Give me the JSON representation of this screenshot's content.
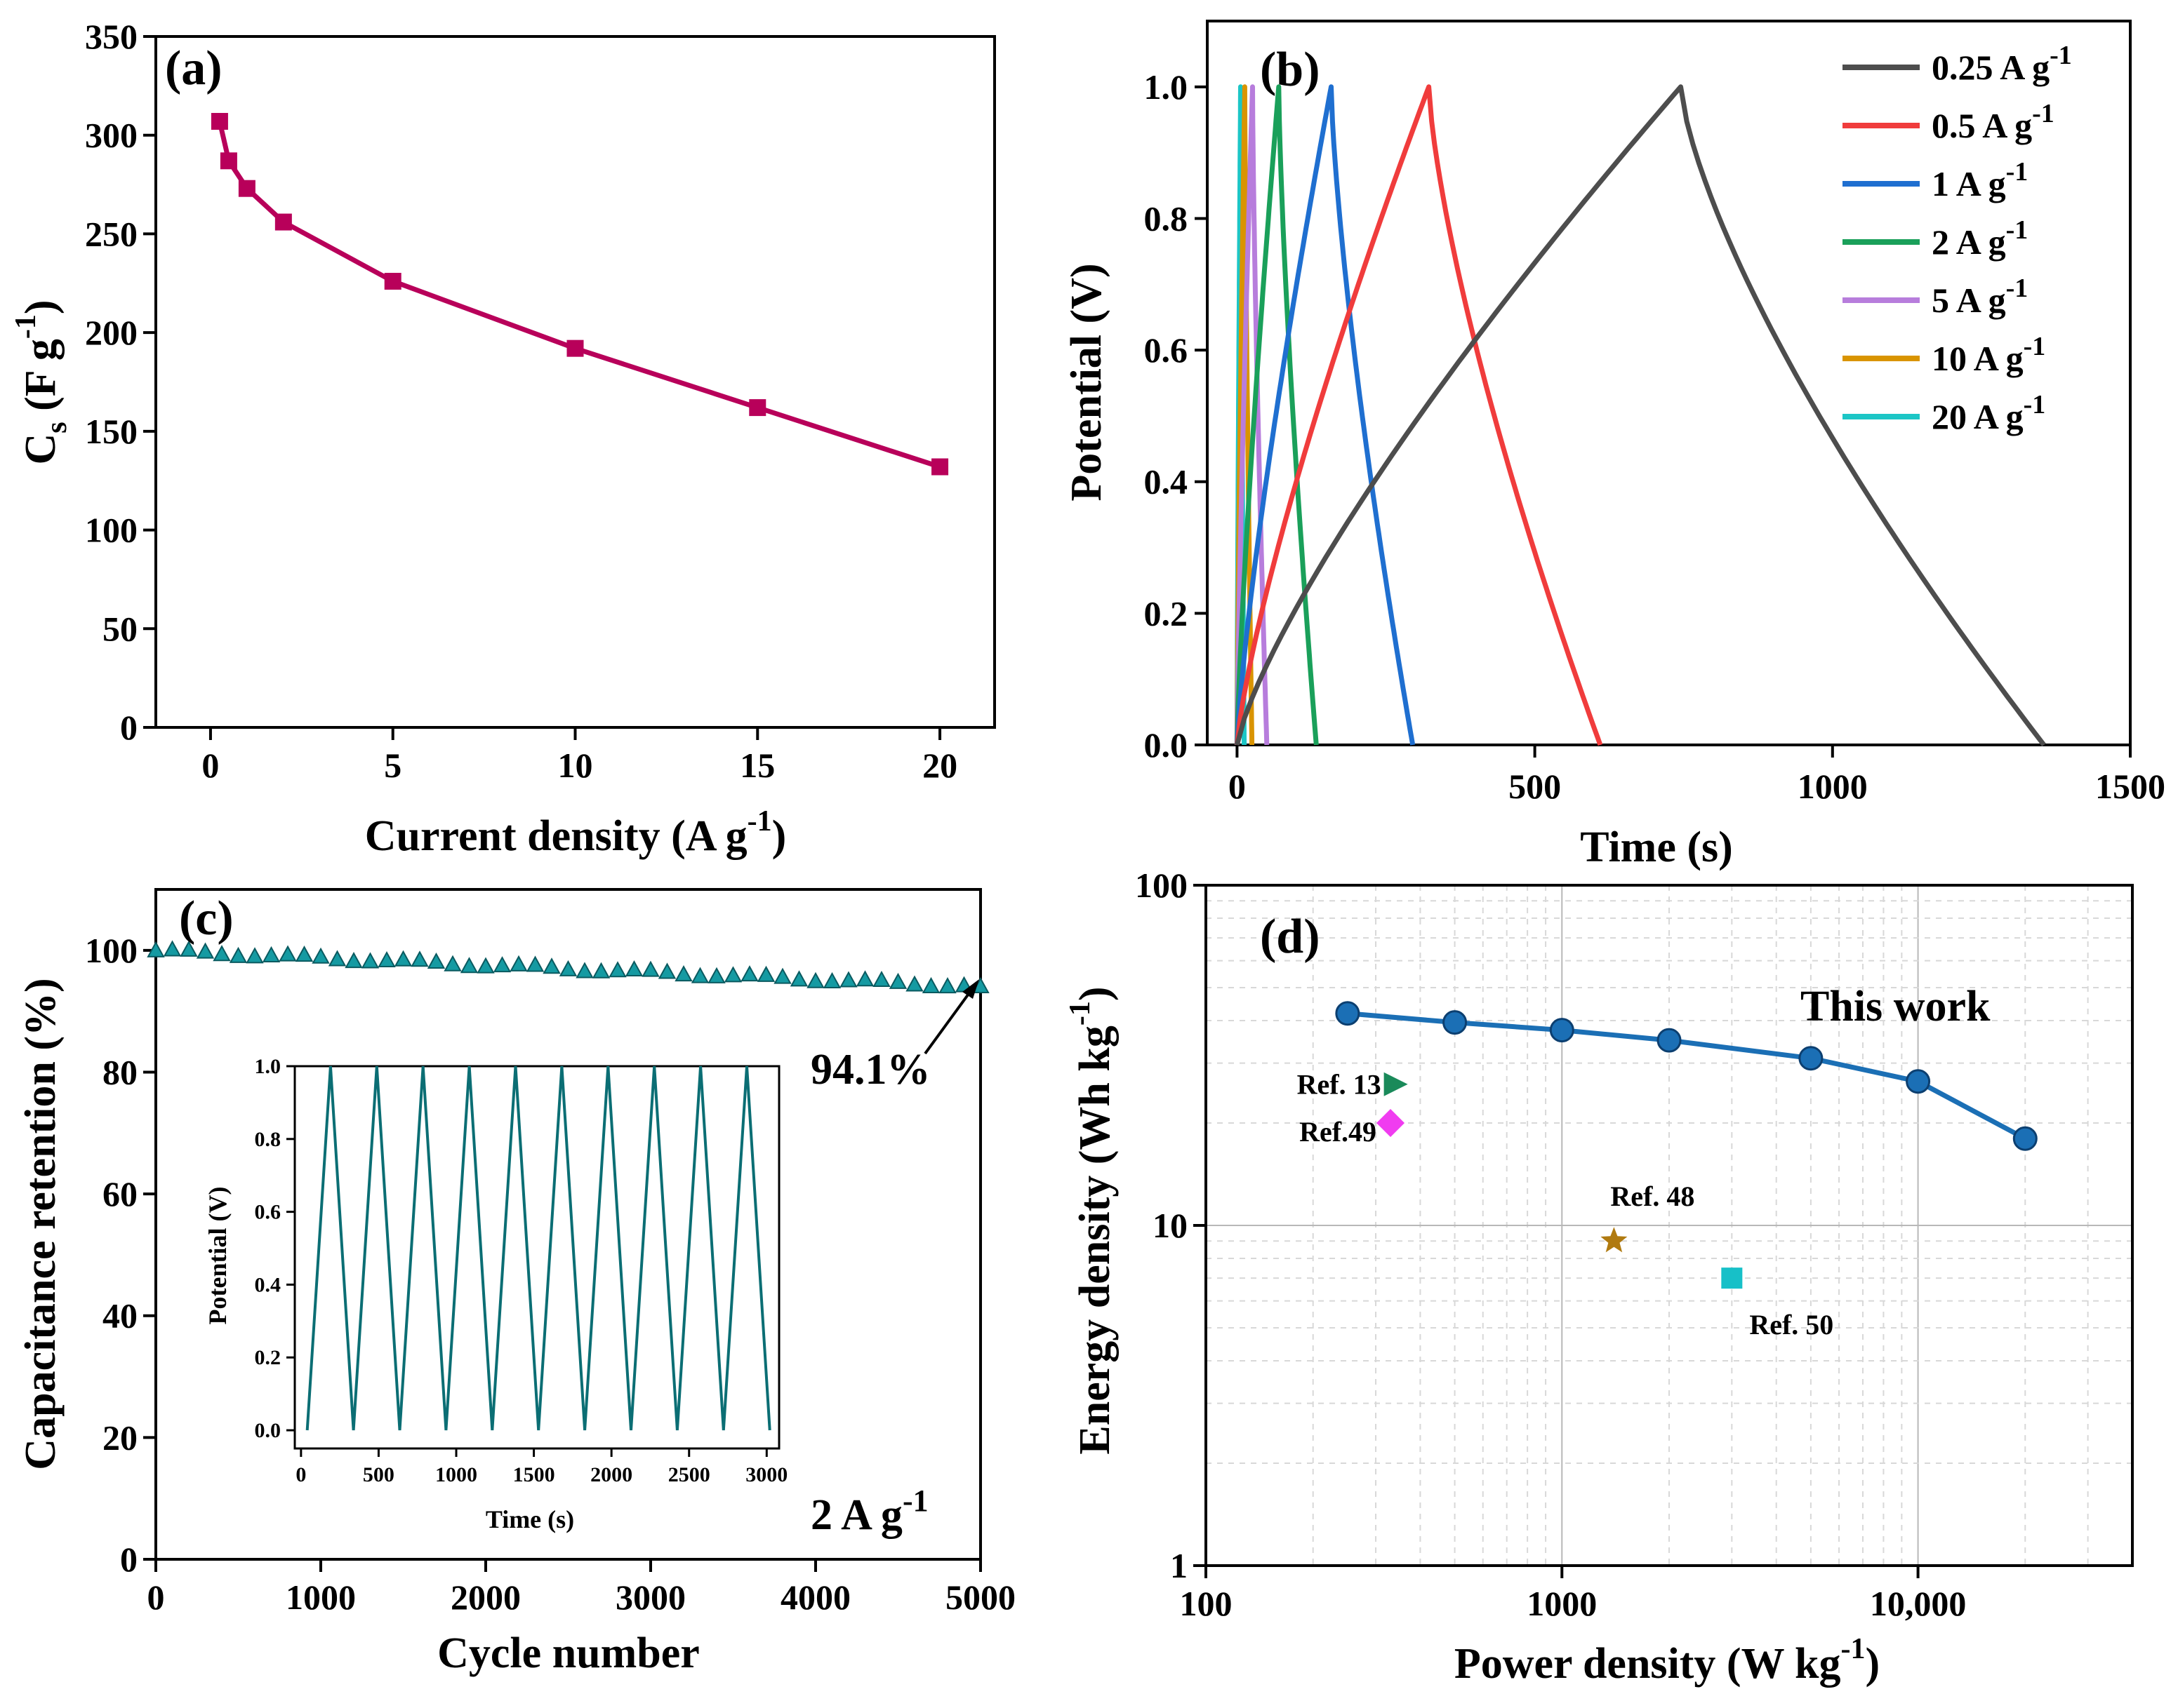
{
  "colors": {
    "a_line": "#b8005a",
    "c_marker": "#159aa2",
    "c_inset": "#0b6e74",
    "d_line": "#1b6fb5"
  },
  "chart_data": [
    {
      "panel": "(a)",
      "type": "line",
      "xlabel": "Current density (A g",
      "xlabel_sup": "-1",
      "xlabel_end": ")",
      "ylabel": "C",
      "ylabel_sub": "s",
      "ylabel_rest": " (F g",
      "ylabel_sup": "-1",
      "ylabel_end": ")",
      "xlim": [
        -1.5,
        21.5
      ],
      "ylim": [
        0,
        350
      ],
      "xticks": [
        0,
        5,
        10,
        15,
        20
      ],
      "yticks": [
        0,
        50,
        100,
        150,
        200,
        250,
        300,
        350
      ],
      "x": [
        0.25,
        0.5,
        1,
        2,
        5,
        10,
        15,
        20
      ],
      "y": [
        307,
        287,
        273,
        256,
        226,
        192,
        162,
        132
      ]
    },
    {
      "panel": "(b)",
      "type": "line",
      "xlabel": "Time (s)",
      "ylabel": "Potential (V)",
      "xlim": [
        -50,
        1500
      ],
      "ylim": [
        0,
        1.1
      ],
      "xticks": [
        0,
        500,
        1000,
        1500
      ],
      "yticks": [
        0.0,
        0.2,
        0.4,
        0.6,
        0.8,
        1.0
      ],
      "series": [
        {
          "name": "0.25 A g",
          "sup": "-1",
          "color": "#4d4d4d",
          "charge_end": 745,
          "discharge_end": 1355
        },
        {
          "name": "0.5 A g",
          "sup": "-1",
          "color": "#f03c3c",
          "charge_end": 322,
          "discharge_end": 610
        },
        {
          "name": "1 A g",
          "sup": "-1",
          "color": "#1f6fd0",
          "charge_end": 158,
          "discharge_end": 295
        },
        {
          "name": "2 A g",
          "sup": "-1",
          "color": "#1aa05a",
          "charge_end": 70,
          "discharge_end": 133
        },
        {
          "name": "5 A g",
          "sup": "-1",
          "color": "#b77ddc",
          "charge_end": 26,
          "discharge_end": 50
        },
        {
          "name": "10 A g",
          "sup": "-1",
          "color": "#d99400",
          "charge_end": 13,
          "discharge_end": 25
        },
        {
          "name": " 20 A g",
          "sup": "-1",
          "color": "#1cc6c6",
          "charge_end": 6,
          "discharge_end": 12
        }
      ]
    },
    {
      "panel": "(c)",
      "type": "scatter",
      "xlabel": "Cycle number",
      "ylabel": "Capacitance retention (%)",
      "xlim": [
        0,
        5000
      ],
      "ylim": [
        0,
        110
      ],
      "xticks": [
        0,
        1000,
        2000,
        3000,
        4000,
        5000
      ],
      "yticks": [
        0,
        20,
        40,
        60,
        80,
        100
      ],
      "x_start": 0,
      "x_step": 100,
      "n_points": 51,
      "y_start": 100,
      "y_end": 94.1,
      "annotation": "94.1%",
      "current_label": "2 A g",
      "current_sup": "-1",
      "inset": {
        "type": "line",
        "xlabel": "Time (s)",
        "ylabel": "Potential (V)",
        "xlim": [
          -40,
          3080
        ],
        "ylim": [
          -0.05,
          1.0
        ],
        "xticks": [
          0,
          500,
          1000,
          1500,
          2000,
          2500,
          3000
        ],
        "yticks": [
          0.0,
          0.2,
          0.4,
          0.6,
          0.8,
          1.0
        ],
        "start_time": 40,
        "cycle_period": 298,
        "charge_time": 150,
        "n_cycles": 10
      }
    },
    {
      "panel": "(d)",
      "type": "scatter",
      "xlabel": "Power density (W kg",
      "xlabel_sup": "-1",
      "xlabel_end": ")",
      "ylabel": "Energy density (Wh kg",
      "ylabel_sup": "-1",
      "ylabel_end": ")",
      "xscale": "log",
      "yscale": "log",
      "xlim": [
        100,
        40000
      ],
      "ylim": [
        1,
        100
      ],
      "xticks": [
        "100",
        "1000",
        "10,000"
      ],
      "yticks": [
        "1",
        "10",
        "100"
      ],
      "this_work_label": "This work",
      "this_work": {
        "x": [
          250,
          500,
          1000,
          2000,
          5000,
          10000,
          20000
        ],
        "y": [
          42,
          39.5,
          37.5,
          35,
          31,
          26.5,
          18
        ]
      },
      "refs": [
        {
          "label": "Ref. 13",
          "x": 340,
          "y": 26,
          "marker": "triangle-right",
          "color": "#1a8a5a"
        },
        {
          "label": "Ref.49",
          "x": 330,
          "y": 20,
          "marker": "diamond",
          "color": "#f03cf0"
        },
        {
          "label": "Ref. 48",
          "x": 1400,
          "y": 9,
          "marker": "star",
          "color": "#b07a10"
        },
        {
          "label": "Ref. 50",
          "x": 3000,
          "y": 7,
          "marker": "square",
          "color": "#17c0c8"
        }
      ]
    }
  ]
}
